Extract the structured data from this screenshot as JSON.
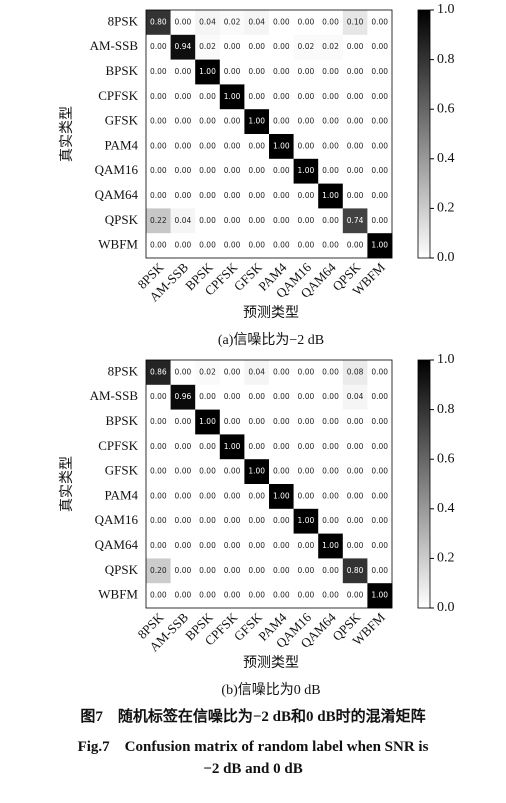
{
  "chart_data": [
    {
      "type": "heatmap",
      "subtitle": "(a)信噪比为−2 dB",
      "xlabel": "预测类型",
      "ylabel": "真实类型",
      "categories": [
        "8PSK",
        "AM-SSB",
        "BPSK",
        "CPFSK",
        "GFSK",
        "PAM4",
        "QAM16",
        "QAM64",
        "QPSK",
        "WBFM"
      ],
      "values": [
        [
          0.8,
          0.0,
          0.04,
          0.02,
          0.04,
          0.0,
          0.0,
          0.0,
          0.1,
          0.0
        ],
        [
          0.0,
          0.94,
          0.02,
          0.0,
          0.0,
          0.0,
          0.02,
          0.02,
          0.0,
          0.0
        ],
        [
          0.0,
          0.0,
          1.0,
          0.0,
          0.0,
          0.0,
          0.0,
          0.0,
          0.0,
          0.0
        ],
        [
          0.0,
          0.0,
          0.0,
          1.0,
          0.0,
          0.0,
          0.0,
          0.0,
          0.0,
          0.0
        ],
        [
          0.0,
          0.0,
          0.0,
          0.0,
          1.0,
          0.0,
          0.0,
          0.0,
          0.0,
          0.0
        ],
        [
          0.0,
          0.0,
          0.0,
          0.0,
          0.0,
          1.0,
          0.0,
          0.0,
          0.0,
          0.0
        ],
        [
          0.0,
          0.0,
          0.0,
          0.0,
          0.0,
          0.0,
          1.0,
          0.0,
          0.0,
          0.0
        ],
        [
          0.0,
          0.0,
          0.0,
          0.0,
          0.0,
          0.0,
          0.0,
          1.0,
          0.0,
          0.0
        ],
        [
          0.22,
          0.04,
          0.0,
          0.0,
          0.0,
          0.0,
          0.0,
          0.0,
          0.74,
          0.0
        ],
        [
          0.0,
          0.0,
          0.0,
          0.0,
          0.0,
          0.0,
          0.0,
          0.0,
          0.0,
          1.0
        ]
      ],
      "value_labels": [
        [
          "0.80",
          "0.00",
          "0.04",
          "0.02",
          "0.04",
          "0.00",
          "0.00",
          "0.00",
          "0.10",
          "0.00"
        ],
        [
          "0.00",
          "0.94",
          "0.02",
          "0.00",
          "0.00",
          "0.00",
          "0.02",
          "0.02",
          "0.00",
          "0.00"
        ],
        [
          "0.00",
          "0.00",
          "1.00",
          "0.00",
          "0.00",
          "0.00",
          "0.00",
          "0.00",
          "0.00",
          "0.00"
        ],
        [
          "0.00",
          "0.00",
          "0.00",
          "1.00",
          "0.00",
          "0.00",
          "0.00",
          "0.00",
          "0.00",
          "0.00"
        ],
        [
          "0.00",
          "0.00",
          "0.00",
          "0.00",
          "1.00",
          "0.00",
          "0.00",
          "0.00",
          "0.00",
          "0.00"
        ],
        [
          "0.00",
          "0.00",
          "0.00",
          "0.00",
          "0.00",
          "1.00",
          "0.00",
          "0.00",
          "0.00",
          "0.00"
        ],
        [
          "0.00",
          "0.00",
          "0.00",
          "0.00",
          "0.00",
          "0.00",
          "1.00",
          "0.00",
          "0.00",
          "0.00"
        ],
        [
          "0.00",
          "0.00",
          "0.00",
          "0.00",
          "0.00",
          "0.00",
          "0.00",
          "1.00",
          "0.00",
          "0.00"
        ],
        [
          "0.22",
          "0.04",
          "0.00",
          "0.00",
          "0.00",
          "0.00",
          "0.00",
          "0.00",
          "0.74",
          "0.00"
        ],
        [
          "0.00",
          "0.00",
          "0.00",
          "0.00",
          "0.00",
          "0.00",
          "0.00",
          "0.00",
          "0.00",
          "1.00"
        ]
      ],
      "cmap": "Greys",
      "clim": [
        0,
        1
      ],
      "cticks": [
        {
          "value": 0,
          "label": "0.0"
        },
        {
          "value": 0.2,
          "label": "0.2"
        },
        {
          "value": 0.4,
          "label": "0.4"
        },
        {
          "value": 0.6,
          "label": "0.6"
        },
        {
          "value": 0.8,
          "label": "0.8"
        },
        {
          "value": 1,
          "label": "1.0"
        }
      ]
    },
    {
      "type": "heatmap",
      "subtitle": "(b)信噪比为0 dB",
      "xlabel": "预测类型",
      "ylabel": "真实类型",
      "categories": [
        "8PSK",
        "AM-SSB",
        "BPSK",
        "CPFSK",
        "GFSK",
        "PAM4",
        "QAM16",
        "QAM64",
        "QPSK",
        "WBFM"
      ],
      "values": [
        [
          0.86,
          0.0,
          0.02,
          0.0,
          0.04,
          0.0,
          0.0,
          0.0,
          0.08,
          0.0
        ],
        [
          0.0,
          0.96,
          0.0,
          0.0,
          0.0,
          0.0,
          0.0,
          0.0,
          0.04,
          0.0
        ],
        [
          0.0,
          0.0,
          1.0,
          0.0,
          0.0,
          0.0,
          0.0,
          0.0,
          0.0,
          0.0
        ],
        [
          0.0,
          0.0,
          0.0,
          1.0,
          0.0,
          0.0,
          0.0,
          0.0,
          0.0,
          0.0
        ],
        [
          0.0,
          0.0,
          0.0,
          0.0,
          1.0,
          0.0,
          0.0,
          0.0,
          0.0,
          0.0
        ],
        [
          0.0,
          0.0,
          0.0,
          0.0,
          0.0,
          1.0,
          0.0,
          0.0,
          0.0,
          0.0
        ],
        [
          0.0,
          0.0,
          0.0,
          0.0,
          0.0,
          0.0,
          1.0,
          0.0,
          0.0,
          0.0
        ],
        [
          0.0,
          0.0,
          0.0,
          0.0,
          0.0,
          0.0,
          0.0,
          1.0,
          0.0,
          0.0
        ],
        [
          0.2,
          0.0,
          0.0,
          0.0,
          0.0,
          0.0,
          0.0,
          0.0,
          0.8,
          0.0
        ],
        [
          0.0,
          0.0,
          0.0,
          0.0,
          0.0,
          0.0,
          0.0,
          0.0,
          0.0,
          1.0
        ]
      ],
      "value_labels": [
        [
          "0.86",
          "0.00",
          "0.02",
          "0.00",
          "0.04",
          "0.00",
          "0.00",
          "0.00",
          "0.08",
          "0.00"
        ],
        [
          "0.00",
          "0.96",
          "0.00",
          "0.00",
          "0.00",
          "0.00",
          "0.00",
          "0.00",
          "0.04",
          "0.00"
        ],
        [
          "0.00",
          "0.00",
          "1.00",
          "0.00",
          "0.00",
          "0.00",
          "0.00",
          "0.00",
          "0.00",
          "0.00"
        ],
        [
          "0.00",
          "0.00",
          "0.00",
          "1.00",
          "0.00",
          "0.00",
          "0.00",
          "0.00",
          "0.00",
          "0.00"
        ],
        [
          "0.00",
          "0.00",
          "0.00",
          "0.00",
          "1.00",
          "0.00",
          "0.00",
          "0.00",
          "0.00",
          "0.00"
        ],
        [
          "0.00",
          "0.00",
          "0.00",
          "0.00",
          "0.00",
          "1.00",
          "0.00",
          "0.00",
          "0.00",
          "0.00"
        ],
        [
          "0.00",
          "0.00",
          "0.00",
          "0.00",
          "0.00",
          "0.00",
          "1.00",
          "0.00",
          "0.00",
          "0.00"
        ],
        [
          "0.00",
          "0.00",
          "0.00",
          "0.00",
          "0.00",
          "0.00",
          "0.00",
          "1.00",
          "0.00",
          "0.00"
        ],
        [
          "0.20",
          "0.00",
          "0.00",
          "0.00",
          "0.00",
          "0.00",
          "0.00",
          "0.00",
          "0.80",
          "0.00"
        ],
        [
          "0.00",
          "0.00",
          "0.00",
          "0.00",
          "0.00",
          "0.00",
          "0.00",
          "0.00",
          "0.00",
          "1.00"
        ]
      ],
      "cmap": "Greys",
      "clim": [
        0,
        1
      ],
      "cticks": [
        {
          "value": 0,
          "label": "0.0"
        },
        {
          "value": 0.2,
          "label": "0.2"
        },
        {
          "value": 0.4,
          "label": "0.4"
        },
        {
          "value": 0.6,
          "label": "0.6"
        },
        {
          "value": 0.8,
          "label": "0.8"
        },
        {
          "value": 1,
          "label": "1.0"
        }
      ]
    }
  ],
  "figure_caption": {
    "zh": "图7　随机标签在信噪比为−2 dB和0 dB时的混淆矩阵",
    "en_line1": "Fig.7　Confusion matrix of random label when SNR is",
    "en_line2": "−2 dB  and 0 dB"
  }
}
